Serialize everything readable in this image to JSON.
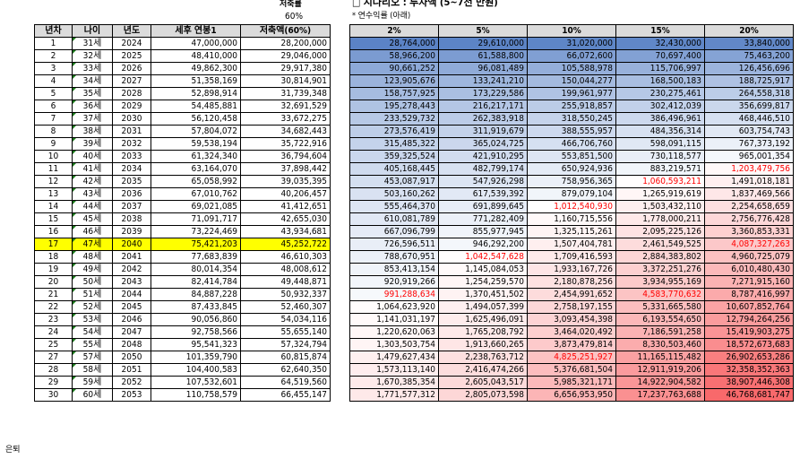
{
  "header": {
    "savings_rate_label": "저축률",
    "savings_rate_value": "60%",
    "scenario_title": "□ 시나리오 : 투자액 (5~7천 만원)",
    "scenario_note": "* 연수익률 (아래)"
  },
  "left_table": {
    "columns": [
      "년차",
      "나이",
      "년도",
      "세후 연봉1",
      "저축액(60%)"
    ],
    "rows": [
      [
        "1",
        "31세",
        "2024",
        "47,000,000",
        "28,200,000"
      ],
      [
        "2",
        "32세",
        "2025",
        "48,410,000",
        "29,046,000"
      ],
      [
        "3",
        "33세",
        "2026",
        "49,862,300",
        "29,917,380"
      ],
      [
        "4",
        "34세",
        "2027",
        "51,358,169",
        "30,814,901"
      ],
      [
        "5",
        "35세",
        "2028",
        "52,898,914",
        "31,739,348"
      ],
      [
        "6",
        "36세",
        "2029",
        "54,485,881",
        "32,691,529"
      ],
      [
        "7",
        "37세",
        "2030",
        "56,120,458",
        "33,672,275"
      ],
      [
        "8",
        "38세",
        "2031",
        "57,804,072",
        "34,682,443"
      ],
      [
        "9",
        "39세",
        "2032",
        "59,538,194",
        "35,722,916"
      ],
      [
        "10",
        "40세",
        "2033",
        "61,324,340",
        "36,794,604"
      ],
      [
        "11",
        "41세",
        "2034",
        "63,164,070",
        "37,898,442"
      ],
      [
        "12",
        "42세",
        "2035",
        "65,058,992",
        "39,035,395"
      ],
      [
        "13",
        "43세",
        "2036",
        "67,010,762",
        "40,206,457"
      ],
      [
        "14",
        "44세",
        "2037",
        "69,021,085",
        "41,412,651"
      ],
      [
        "15",
        "45세",
        "2038",
        "71,091,717",
        "42,655,030"
      ],
      [
        "16",
        "46세",
        "2039",
        "73,224,469",
        "43,934,681"
      ],
      [
        "17",
        "47세",
        "2040",
        "75,421,203",
        "45,252,722"
      ],
      [
        "18",
        "48세",
        "2041",
        "77,683,839",
        "46,610,303"
      ],
      [
        "19",
        "49세",
        "2042",
        "80,014,354",
        "48,008,612"
      ],
      [
        "20",
        "50세",
        "2043",
        "82,414,784",
        "49,448,871"
      ],
      [
        "21",
        "51세",
        "2044",
        "84,887,228",
        "50,932,337"
      ],
      [
        "22",
        "52세",
        "2045",
        "87,433,845",
        "52,460,307"
      ],
      [
        "23",
        "53세",
        "2046",
        "90,056,860",
        "54,034,116"
      ],
      [
        "24",
        "54세",
        "2047",
        "92,758,566",
        "55,655,140"
      ],
      [
        "25",
        "55세",
        "2048",
        "95,541,323",
        "57,324,794"
      ],
      [
        "27",
        "57세",
        "2050",
        "101,359,790",
        "60,815,874"
      ],
      [
        "28",
        "58세",
        "2051",
        "104,400,583",
        "62,640,350"
      ],
      [
        "29",
        "59세",
        "2052",
        "107,532,601",
        "64,519,560"
      ],
      [
        "30",
        "60세",
        "2053",
        "110,758,579",
        "66,455,147"
      ]
    ],
    "highlight_row_index": 16
  },
  "retire_label": "은퇴",
  "right_table": {
    "columns": [
      "2%",
      "5%",
      "10%",
      "15%",
      "20%"
    ],
    "column_colors": {
      "from_light": "#ffffff",
      "to_blue": "#5b83c6",
      "to_red": "#f8696b"
    },
    "rows": [
      [
        "28,764,000",
        "29,610,000",
        "31,020,000",
        "32,430,000",
        "33,840,000"
      ],
      [
        "58,966,200",
        "61,588,800",
        "66,072,600",
        "70,697,400",
        "75,463,200"
      ],
      [
        "90,661,252",
        "96,081,489",
        "105,588,978",
        "115,706,997",
        "126,456,696"
      ],
      [
        "123,905,676",
        "133,241,210",
        "150,044,277",
        "168,500,183",
        "188,725,917"
      ],
      [
        "158,757,925",
        "173,229,586",
        "199,961,977",
        "230,275,461",
        "264,558,318"
      ],
      [
        "195,278,443",
        "216,217,171",
        "255,918,857",
        "302,412,039",
        "356,699,817"
      ],
      [
        "233,529,732",
        "262,383,918",
        "318,550,245",
        "386,496,961",
        "468,446,510"
      ],
      [
        "273,576,419",
        "311,919,679",
        "388,555,957",
        "484,356,314",
        "603,754,743"
      ],
      [
        "315,485,322",
        "365,024,725",
        "466,706,760",
        "598,091,115",
        "767,373,192"
      ],
      [
        "359,325,524",
        "421,910,295",
        "553,851,500",
        "730,118,577",
        "965,001,354"
      ],
      [
        "405,168,445",
        "482,799,174",
        "650,924,936",
        "883,219,571",
        "1,203,479,756"
      ],
      [
        "453,087,917",
        "547,926,298",
        "758,956,365",
        "1,060,593,211",
        "1,491,018,181"
      ],
      [
        "503,160,262",
        "617,539,392",
        "879,079,104",
        "1,265,919,619",
        "1,837,469,566"
      ],
      [
        "555,464,370",
        "691,899,645",
        "1,012,540,930",
        "1,503,432,110",
        "2,254,658,659"
      ],
      [
        "610,081,789",
        "771,282,409",
        "1,160,715,556",
        "1,778,000,211",
        "2,756,776,428"
      ],
      [
        "667,096,799",
        "855,977,945",
        "1,325,115,261",
        "2,095,225,126",
        "3,360,853,331"
      ],
      [
        "726,596,511",
        "946,292,200",
        "1,507,404,781",
        "2,461,549,525",
        "4,087,327,263"
      ],
      [
        "788,670,951",
        "1,042,547,628",
        "1,709,416,593",
        "2,884,383,802",
        "4,960,725,079"
      ],
      [
        "853,413,154",
        "1,145,084,053",
        "1,933,167,726",
        "3,372,251,276",
        "6,010,480,430"
      ],
      [
        "920,919,266",
        "1,254,259,570",
        "2,180,878,256",
        "3,934,955,169",
        "7,271,915,160"
      ],
      [
        "991,288,634",
        "1,370,451,502",
        "2,454,991,652",
        "4,583,770,632",
        "8,787,416,997"
      ],
      [
        "1,064,623,920",
        "1,494,057,399",
        "2,758,197,155",
        "5,331,665,580",
        "10,607,852,764"
      ],
      [
        "1,141,031,197",
        "1,625,496,091",
        "3,093,454,398",
        "6,193,554,650",
        "12,794,264,256"
      ],
      [
        "1,220,620,063",
        "1,765,208,792",
        "3,464,020,492",
        "7,186,591,258",
        "15,419,903,275"
      ],
      [
        "1,303,503,754",
        "1,913,660,265",
        "3,873,479,814",
        "8,330,503,460",
        "18,572,673,683"
      ],
      [
        "1,479,627,434",
        "2,238,763,712",
        "4,825,251,927",
        "11,165,115,482",
        "26,902,653,286"
      ],
      [
        "1,573,113,140",
        "2,416,474,266",
        "5,376,681,504",
        "12,911,919,206",
        "32,358,352,363"
      ],
      [
        "1,670,385,354",
        "2,605,043,517",
        "5,985,321,171",
        "14,922,904,582",
        "38,907,446,308"
      ],
      [
        "1,771,577,312",
        "2,805,073,598",
        "6,656,953,950",
        "17,237,763,688",
        "46,768,681,747"
      ]
    ],
    "red_text_cells": [
      [
        10,
        4
      ],
      [
        11,
        3
      ],
      [
        13,
        2
      ],
      [
        16,
        4
      ],
      [
        17,
        1
      ],
      [
        20,
        0
      ],
      [
        20,
        3
      ],
      [
        25,
        2
      ]
    ]
  }
}
